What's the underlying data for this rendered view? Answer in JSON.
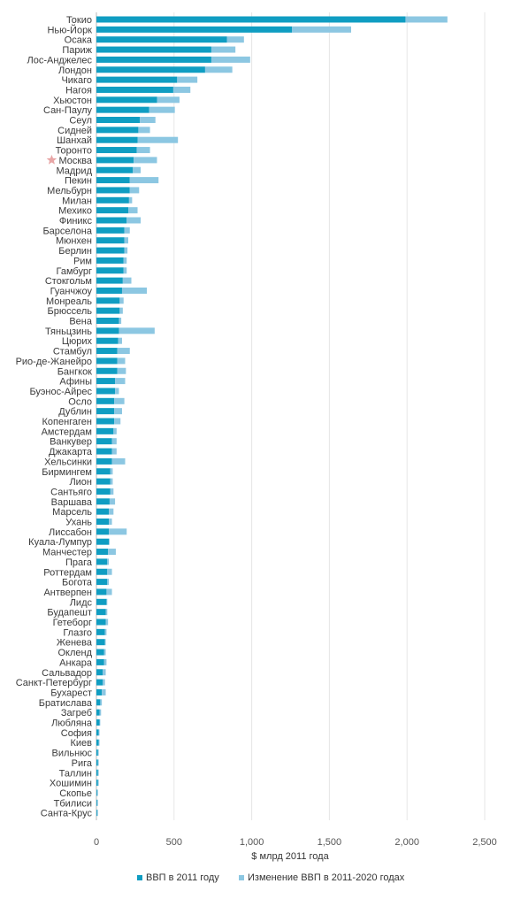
{
  "chart_data": {
    "type": "bar",
    "orientation": "horizontal",
    "stacked": true,
    "title": "",
    "xlabel": "$ млрд 2011 года",
    "ylabel": "",
    "xlim": [
      0,
      2500
    ],
    "xticks": [
      0,
      500,
      1000,
      1500,
      2000,
      2500
    ],
    "xtick_labels": [
      "0",
      "500",
      "1,000",
      "1,500",
      "2,000",
      "2,500"
    ],
    "grid": true,
    "legend": "bottom",
    "highlight_category": "Москва",
    "highlight_marker": "star",
    "categories": [
      "Токио",
      "Нью-Йорк",
      "Осака",
      "Париж",
      "Лос-Анджелес",
      "Лондон",
      "Чикаго",
      "Нагоя",
      "Хьюстон",
      "Сан-Паулу",
      "Сеул",
      "Сидней",
      "Шанхай",
      "Торонто",
      "Москва",
      "Мадрид",
      "Пекин",
      "Мельбурн",
      "Милан",
      "Мехико",
      "Финикс",
      "Барселона",
      "Мюнхен",
      "Берлин",
      "Рим",
      "Гамбург",
      "Стокгольм",
      "Гуанчжоу",
      "Монреаль",
      "Брюссель",
      "Вена",
      "Тяньцзинь",
      "Цюрих",
      "Стамбул",
      "Рио-де-Жанейро",
      "Бангкок",
      "Афины",
      "Буэнос-Айрес",
      "Осло",
      "Дублин",
      "Копенгаген",
      "Амстердам",
      "Ванкувер",
      "Джакарта",
      "Хельсинки",
      "Бирмингем",
      "Лион",
      "Сантьяго",
      "Варшава",
      "Марсель",
      "Ухань",
      "Лиссабон",
      "Куала-Лумпур",
      "Манчестер",
      "Прага",
      "Роттердам",
      "Богота",
      "Антверпен",
      "Лидс",
      "Будапешт",
      "Гетеборг",
      "Глазго",
      "Женева",
      "Окленд",
      "Анкара",
      "Сальвадор",
      "Санкт-Петербург",
      "Бухарест",
      "Братислава",
      "Загреб",
      "Любляна",
      "София",
      "Киев",
      "Вильнюс",
      "Рига",
      "Таллин",
      "Хошимин",
      "Скопье",
      "Тбилиси",
      "Санта-Крус"
    ],
    "series": [
      {
        "name": "ВВП в 2011 году",
        "color": "#0f9dc2",
        "values": [
          1990,
          1260,
          840,
          740,
          740,
          700,
          520,
          495,
          390,
          340,
          280,
          270,
          265,
          260,
          240,
          235,
          215,
          215,
          210,
          205,
          195,
          180,
          180,
          180,
          175,
          175,
          170,
          165,
          150,
          150,
          145,
          145,
          140,
          135,
          135,
          135,
          120,
          120,
          115,
          115,
          115,
          110,
          100,
          100,
          100,
          90,
          90,
          90,
          85,
          80,
          80,
          80,
          80,
          75,
          70,
          70,
          70,
          65,
          65,
          60,
          60,
          55,
          55,
          50,
          50,
          40,
          40,
          35,
          25,
          20,
          20,
          15,
          15,
          10,
          10,
          10,
          10,
          5,
          5,
          5
        ]
      },
      {
        "name": "Изменение ВВП в 2011-2020 годах",
        "color": "#8cc7e2",
        "values": [
          270,
          380,
          110,
          155,
          250,
          175,
          130,
          110,
          145,
          165,
          100,
          75,
          260,
          85,
          150,
          50,
          185,
          60,
          20,
          60,
          90,
          35,
          25,
          20,
          20,
          20,
          55,
          160,
          25,
          20,
          15,
          230,
          25,
          80,
          50,
          55,
          65,
          25,
          65,
          50,
          40,
          20,
          30,
          30,
          85,
          15,
          15,
          20,
          35,
          30,
          20,
          115,
          5,
          50,
          10,
          30,
          10,
          35,
          5,
          10,
          15,
          10,
          5,
          10,
          15,
          20,
          15,
          25,
          10,
          10,
          5,
          5,
          5,
          5,
          5,
          5,
          5,
          5,
          5,
          5
        ]
      }
    ]
  }
}
